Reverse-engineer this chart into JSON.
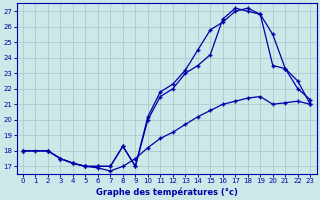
{
  "xlabel": "Graphe des températures (°c)",
  "bg_color": "#cce8e8",
  "grid_color": "#aacccc",
  "line_color": "#0000aa",
  "xlim": [
    -0.5,
    23.5
  ],
  "ylim": [
    16.5,
    27.5
  ],
  "yticks": [
    17,
    18,
    19,
    20,
    21,
    22,
    23,
    24,
    25,
    26,
    27
  ],
  "xticks": [
    0,
    1,
    2,
    3,
    4,
    5,
    6,
    7,
    8,
    9,
    10,
    11,
    12,
    13,
    14,
    15,
    16,
    17,
    18,
    19,
    20,
    21,
    22,
    23
  ],
  "line1_x": [
    0,
    1,
    2,
    3,
    4,
    5,
    6,
    7,
    8,
    9,
    10,
    11,
    12,
    13,
    14,
    15,
    16,
    17,
    18,
    19,
    20,
    21,
    22,
    23
  ],
  "line1_y": [
    18.0,
    18.0,
    18.0,
    17.5,
    17.2,
    17.0,
    16.9,
    16.7,
    17.0,
    17.5,
    18.2,
    18.8,
    19.2,
    19.7,
    20.2,
    20.6,
    21.0,
    21.2,
    21.4,
    21.5,
    21.0,
    21.1,
    21.2,
    21.0
  ],
  "line2_x": [
    0,
    2,
    3,
    4,
    5,
    6,
    7,
    8,
    9,
    10,
    11,
    12,
    13,
    14,
    15,
    16,
    17,
    18,
    19,
    20,
    21,
    22,
    23
  ],
  "line2_y": [
    18.0,
    18.0,
    17.5,
    17.2,
    17.0,
    17.0,
    17.0,
    18.3,
    17.0,
    20.2,
    21.8,
    22.3,
    23.2,
    24.5,
    25.8,
    26.3,
    27.0,
    27.2,
    26.8,
    23.5,
    23.3,
    22.0,
    21.3
  ],
  "line3_x": [
    0,
    2,
    3,
    4,
    5,
    6,
    7,
    8,
    9,
    10,
    11,
    12,
    13,
    14,
    15,
    16,
    17,
    18,
    19,
    20,
    21,
    22,
    23
  ],
  "line3_y": [
    18.0,
    18.0,
    17.5,
    17.2,
    17.0,
    17.0,
    17.0,
    18.3,
    17.0,
    20.0,
    21.5,
    22.0,
    23.0,
    23.5,
    24.2,
    26.5,
    27.2,
    27.0,
    26.8,
    25.5,
    23.3,
    22.5,
    21.0
  ],
  "xlabel_fontsize": 6.0,
  "tick_fontsize": 5.0
}
